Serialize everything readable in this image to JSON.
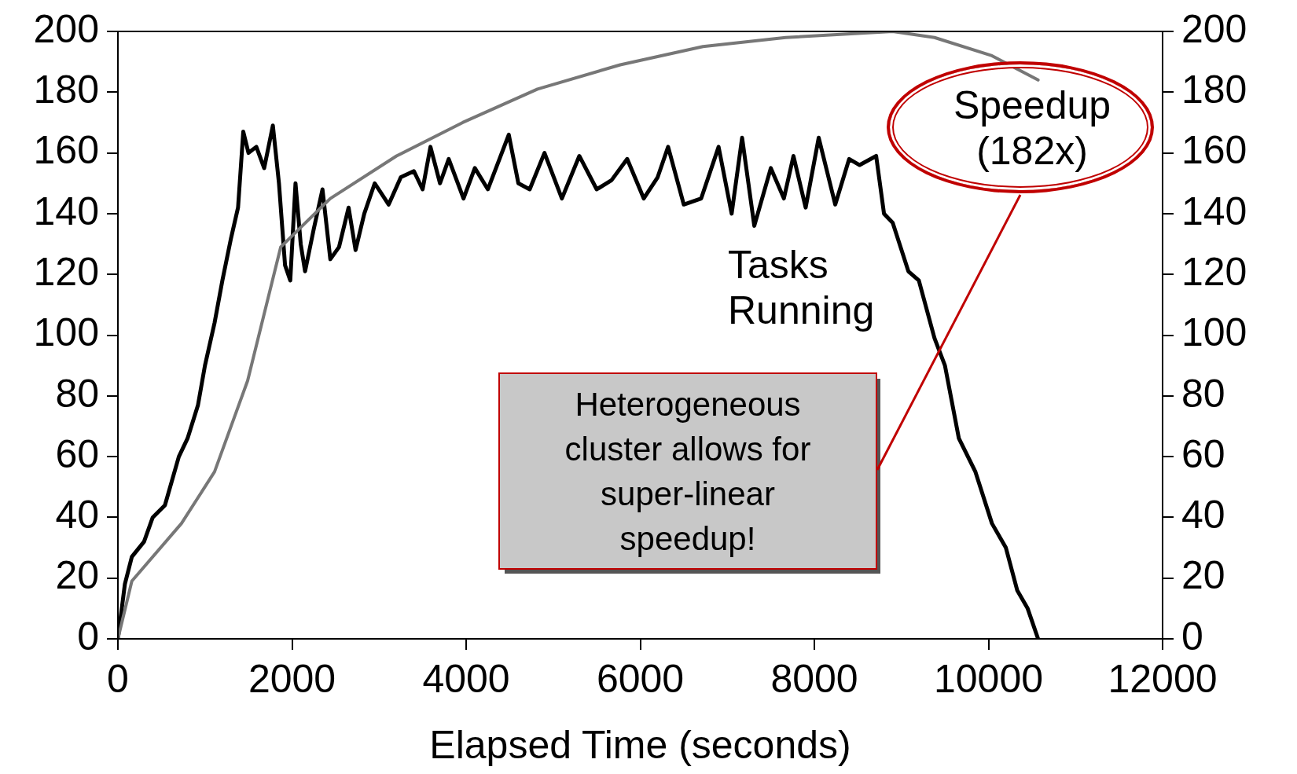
{
  "chart_data": {
    "type": "line",
    "xlabel": "Elapsed Time (seconds)",
    "xlim": [
      0,
      12000
    ],
    "xticks": [
      0,
      2000,
      4000,
      6000,
      8000,
      10000,
      12000
    ],
    "ylim": [
      0,
      200
    ],
    "yticks": [
      0,
      20,
      40,
      60,
      80,
      100,
      120,
      140,
      160,
      180,
      200
    ],
    "y2lim": [
      0,
      200
    ],
    "y2ticks": [
      0,
      20,
      40,
      60,
      80,
      100,
      120,
      140,
      160,
      180,
      200
    ],
    "grid": false,
    "legend": false,
    "marker": "none",
    "annotations": [
      "Heterogeneous cluster allows for super-linear speedup!"
    ],
    "series": [
      {
        "name": "Tasks Running",
        "color": "#000000",
        "line_style": "solid",
        "x": [
          0,
          80,
          160,
          300,
          400,
          540,
          700,
          800,
          920,
          1000,
          1110,
          1200,
          1300,
          1380,
          1440,
          1500,
          1590,
          1680,
          1780,
          1850,
          1920,
          1980,
          2040,
          2100,
          2150,
          2250,
          2350,
          2440,
          2540,
          2650,
          2730,
          2830,
          2950,
          3110,
          3250,
          3400,
          3500,
          3590,
          3700,
          3800,
          3970,
          4100,
          4250,
          4490,
          4600,
          4730,
          4900,
          5100,
          5300,
          5500,
          5670,
          5850,
          6040,
          6200,
          6320,
          6500,
          6700,
          6900,
          7050,
          7170,
          7310,
          7500,
          7650,
          7760,
          7900,
          8050,
          8240,
          8400,
          8520,
          8710,
          8800,
          8900,
          9080,
          9200,
          9380,
          9500,
          9660,
          9850,
          10040,
          10200,
          10330,
          10450,
          10570
        ],
        "values": [
          0,
          18,
          27,
          32,
          40,
          44,
          60,
          66,
          77,
          90,
          104,
          118,
          132,
          142,
          167,
          160,
          162,
          155,
          169,
          150,
          123,
          118,
          150,
          130,
          121,
          135,
          148,
          125,
          129,
          142,
          128,
          140,
          150,
          143,
          152,
          154,
          148,
          162,
          150,
          158,
          145,
          155,
          148,
          166,
          150,
          148,
          160,
          145,
          159,
          148,
          151,
          158,
          145,
          152,
          162,
          143,
          145,
          162,
          140,
          165,
          136,
          155,
          145,
          159,
          142,
          165,
          143,
          158,
          156,
          159,
          140,
          137,
          121,
          118,
          99,
          90,
          66,
          55,
          38,
          30,
          16,
          10,
          0
        ]
      },
      {
        "name": "Speedup (182x)",
        "color": "#777777",
        "line_style": "solid",
        "axis": "y2",
        "x": [
          0,
          160,
          730,
          1110,
          1490,
          1870,
          2440,
          3200,
          3960,
          4820,
          5770,
          6720,
          7670,
          8900,
          9380,
          10040,
          10570
        ],
        "values": [
          0,
          19,
          38,
          55,
          85,
          129,
          145,
          159,
          170,
          181,
          189,
          195,
          198,
          200,
          198,
          192,
          184
        ]
      }
    ]
  }
}
